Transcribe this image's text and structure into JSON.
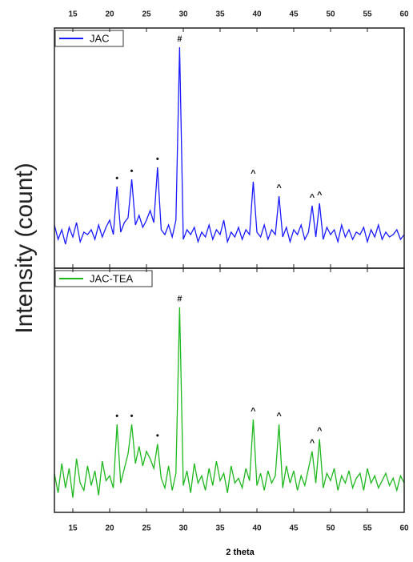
{
  "chart_data": {
    "type": "line",
    "x_label": "2 theta",
    "y_label": "Intensity (count)",
    "xlim": [
      12.5,
      60
    ],
    "xticks": [
      15,
      20,
      25,
      30,
      35,
      40,
      45,
      50,
      55,
      60
    ],
    "ylim": [
      0,
      100
    ],
    "x": [
      12.5,
      13,
      13.5,
      14,
      14.5,
      15,
      15.5,
      16,
      16.5,
      17,
      17.5,
      18,
      18.5,
      19,
      19.5,
      20,
      20.5,
      21,
      21.5,
      22,
      22.5,
      23,
      23.5,
      24,
      24.5,
      25,
      25.5,
      26,
      26.5,
      27,
      27.5,
      28,
      28.5,
      29,
      29.5,
      30,
      30.5,
      31,
      31.5,
      32,
      32.5,
      33,
      33.5,
      34,
      34.5,
      35,
      35.5,
      36,
      36.5,
      37,
      37.5,
      38,
      38.5,
      39,
      39.5,
      40,
      40.5,
      41,
      41.5,
      42,
      42.5,
      43,
      43.5,
      44,
      44.5,
      45,
      45.5,
      46,
      46.5,
      47,
      47.5,
      48,
      48.5,
      49,
      49.5,
      50,
      50.5,
      51,
      51.5,
      52,
      52.5,
      53,
      53.5,
      54,
      54.5,
      55,
      55.5,
      56,
      56.5,
      57,
      57.5,
      58,
      58.5,
      59,
      59.5,
      60
    ],
    "series": [
      {
        "name": "JAC",
        "color": "#1a1aff",
        "values": [
          18,
          12,
          16,
          10,
          17,
          13,
          19,
          11,
          15,
          14,
          16,
          12,
          18,
          13,
          17,
          20,
          14,
          34,
          15,
          19,
          21,
          37,
          18,
          22,
          17,
          20,
          24,
          19,
          42,
          16,
          14,
          18,
          13,
          20,
          92,
          12,
          16,
          14,
          17,
          11,
          15,
          13,
          18,
          12,
          16,
          14,
          20,
          11,
          15,
          13,
          17,
          12,
          16,
          14,
          36,
          15,
          13,
          18,
          12,
          16,
          14,
          30,
          13,
          17,
          11,
          16,
          14,
          18,
          12,
          15,
          26,
          13,
          27,
          12,
          17,
          14,
          16,
          11,
          18,
          13,
          16,
          12,
          15,
          14,
          17,
          11,
          16,
          13,
          18,
          12,
          15,
          13,
          14,
          16,
          12,
          14
        ],
        "annotations": [
          {
            "text": "•",
            "x": 21
          },
          {
            "text": "•",
            "x": 23
          },
          {
            "text": "•",
            "x": 26.5
          },
          {
            "text": "#",
            "x": 29.5
          },
          {
            "text": "^",
            "x": 39.5
          },
          {
            "text": "^",
            "x": 43
          },
          {
            "text": "^",
            "x": 47.5
          },
          {
            "text": "^",
            "x": 48.5
          }
        ]
      },
      {
        "name": "JAC-TEA",
        "color": "#1db81d",
        "values": [
          16,
          8,
          20,
          10,
          18,
          6,
          22,
          12,
          9,
          19,
          11,
          17,
          7,
          21,
          13,
          15,
          10,
          36,
          12,
          18,
          24,
          36,
          20,
          27,
          19,
          25,
          22,
          18,
          28,
          14,
          10,
          19,
          9,
          16,
          84,
          11,
          17,
          8,
          20,
          12,
          15,
          9,
          18,
          11,
          21,
          13,
          16,
          8,
          19,
          12,
          14,
          10,
          18,
          13,
          38,
          11,
          16,
          9,
          17,
          12,
          15,
          36,
          10,
          19,
          12,
          17,
          9,
          15,
          11,
          18,
          25,
          12,
          30,
          10,
          16,
          13,
          18,
          9,
          15,
          12,
          17,
          10,
          14,
          16,
          9,
          18,
          12,
          15,
          10,
          13,
          16,
          11,
          14,
          9,
          15,
          12
        ],
        "annotations": [
          {
            "text": "•",
            "x": 21
          },
          {
            "text": "•",
            "x": 23
          },
          {
            "text": "•",
            "x": 26.5
          },
          {
            "text": "#",
            "x": 29.5
          },
          {
            "text": "^",
            "x": 39.5
          },
          {
            "text": "^",
            "x": 43
          },
          {
            "text": "^",
            "x": 47.5
          },
          {
            "text": "^",
            "x": 48.5
          }
        ]
      }
    ]
  }
}
